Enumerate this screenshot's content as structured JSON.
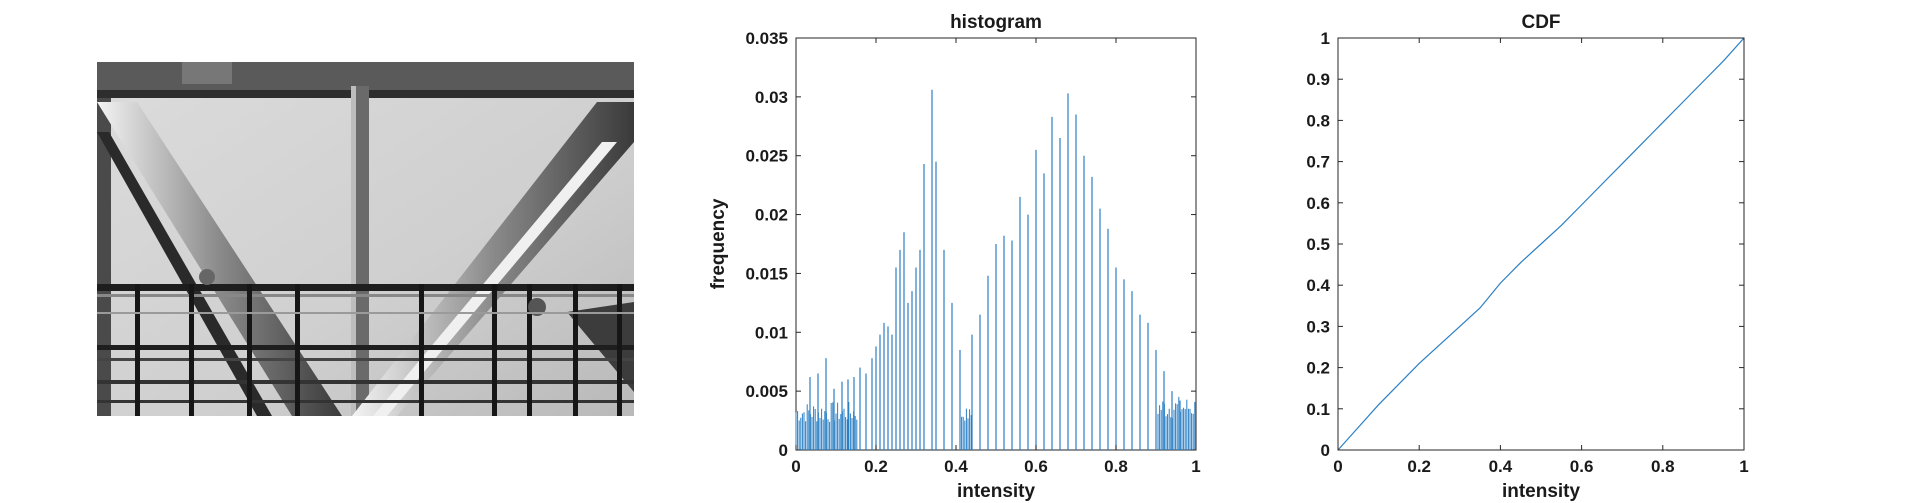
{
  "figure": {
    "image_panel": {
      "alt": ""
    }
  },
  "chart_data": [
    {
      "type": "bar",
      "title": "histogram",
      "xlabel": "intensity",
      "ylabel": "frequency",
      "xlim": [
        0,
        1
      ],
      "ylim": [
        0,
        0.035
      ],
      "x_ticks": [
        "0",
        "0.2",
        "0.4",
        "0.6",
        "0.8",
        "1"
      ],
      "y_ticks": [
        "0",
        "0.005",
        "0.01",
        "0.015",
        "0.02",
        "0.025",
        "0.03",
        "0.035"
      ],
      "grid": false,
      "series_color": "#2b7fc4",
      "tall_bars": {
        "x": [
          0.035,
          0.055,
          0.075,
          0.095,
          0.115,
          0.13,
          0.145,
          0.16,
          0.175,
          0.19,
          0.2,
          0.21,
          0.22,
          0.23,
          0.24,
          0.25,
          0.26,
          0.27,
          0.28,
          0.29,
          0.3,
          0.31,
          0.32,
          0.34,
          0.35,
          0.37,
          0.39,
          0.41,
          0.44,
          0.46,
          0.48,
          0.5,
          0.52,
          0.54,
          0.56,
          0.58,
          0.6,
          0.62,
          0.64,
          0.66,
          0.68,
          0.7,
          0.72,
          0.74,
          0.76,
          0.78,
          0.8,
          0.82,
          0.84,
          0.86,
          0.88,
          0.9,
          0.92,
          0.94,
          0.96
        ],
        "values": [
          0.0062,
          0.0065,
          0.0078,
          0.0052,
          0.0058,
          0.006,
          0.0062,
          0.007,
          0.0065,
          0.0078,
          0.0088,
          0.0098,
          0.0108,
          0.0105,
          0.0098,
          0.0155,
          0.017,
          0.0185,
          0.0125,
          0.0135,
          0.0155,
          0.017,
          0.0243,
          0.0306,
          0.0245,
          0.017,
          0.0125,
          0.0085,
          0.0098,
          0.0115,
          0.0148,
          0.0175,
          0.0182,
          0.0178,
          0.0215,
          0.02,
          0.0255,
          0.0235,
          0.0283,
          0.0265,
          0.0303,
          0.0285,
          0.025,
          0.0232,
          0.0205,
          0.0188,
          0.0155,
          0.0145,
          0.0135,
          0.0115,
          0.0108,
          0.0085,
          0.0067,
          0.005,
          0.0042
        ]
      },
      "dense_regions": [
        {
          "x_range": [
            0,
            0.155
          ],
          "mean": 0.0032,
          "spread": 0.0009
        },
        {
          "x_range": [
            0.41,
            0.44
          ],
          "mean": 0.003,
          "spread": 0.0006
        },
        {
          "x_range": [
            0.905,
            1.0
          ],
          "mean": 0.0036,
          "spread": 0.001
        }
      ]
    },
    {
      "type": "line",
      "title": "CDF",
      "xlabel": "intensity",
      "ylabel": "",
      "xlim": [
        0,
        1
      ],
      "ylim": [
        0,
        1
      ],
      "x_ticks": [
        "0",
        "0.2",
        "0.4",
        "0.6",
        "0.8",
        "1"
      ],
      "y_ticks": [
        "0",
        "0.1",
        "0.2",
        "0.3",
        "0.4",
        "0.5",
        "0.6",
        "0.7",
        "0.8",
        "0.9",
        "1"
      ],
      "grid": false,
      "series_color": "#2b7fc4",
      "x": [
        0,
        0.05,
        0.1,
        0.15,
        0.2,
        0.25,
        0.3,
        0.35,
        0.4,
        0.45,
        0.5,
        0.55,
        0.6,
        0.65,
        0.7,
        0.75,
        0.8,
        0.85,
        0.9,
        0.95,
        1
      ],
      "y": [
        0,
        0.055,
        0.11,
        0.16,
        0.21,
        0.255,
        0.3,
        0.345,
        0.405,
        0.455,
        0.5,
        0.545,
        0.595,
        0.645,
        0.695,
        0.745,
        0.795,
        0.845,
        0.895,
        0.945,
        1
      ]
    }
  ]
}
